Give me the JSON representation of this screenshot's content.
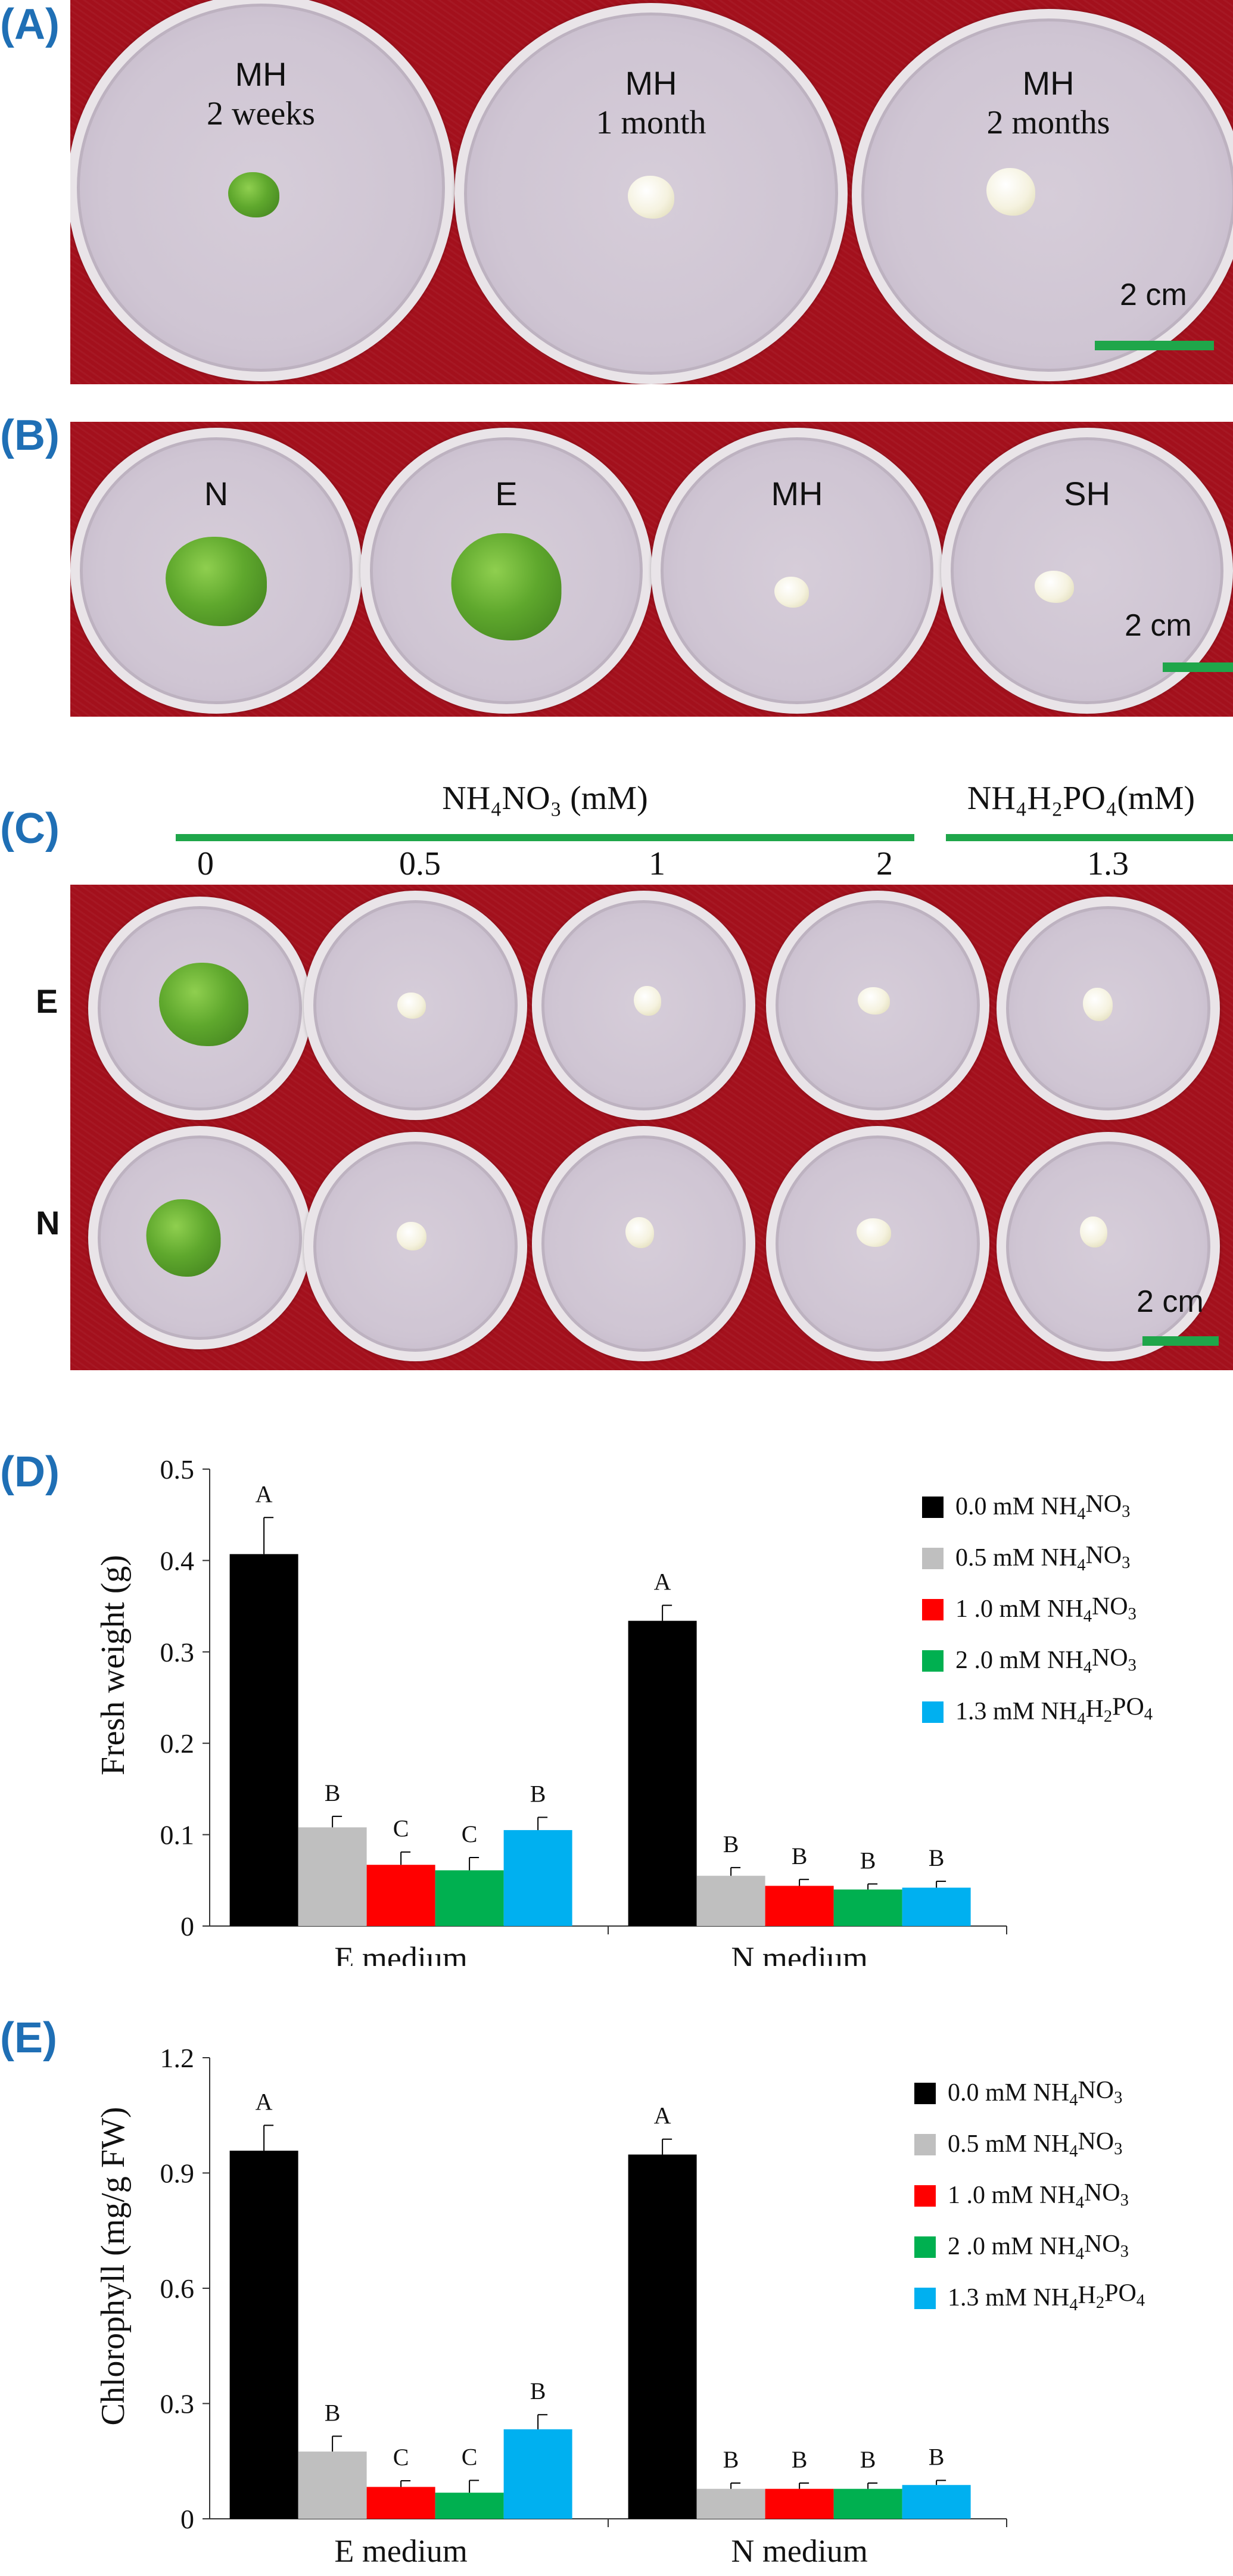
{
  "panels": {
    "a": {
      "label": "(A)",
      "dishes": [
        {
          "line1": "MH",
          "line2": "2 weeks",
          "callus": "green"
        },
        {
          "line1": "MH",
          "line2": "1 month",
          "callus": "white"
        },
        {
          "line1": "MH",
          "line2": "2 months",
          "callus": "white"
        }
      ],
      "scale": "2 cm"
    },
    "b": {
      "label": "(B)",
      "dishes": [
        {
          "name": "N",
          "callus": "green"
        },
        {
          "name": "E",
          "callus": "green"
        },
        {
          "name": "MH",
          "callus": "white"
        },
        {
          "name": "SH",
          "callus": "white"
        }
      ],
      "scale": "2 cm"
    },
    "c": {
      "label": "(C)",
      "header_left": "NH₄NO₃ (mM)",
      "header_right": "NH₄H₂PO₄(mM)",
      "concentrations": [
        "0",
        "0.5",
        "1",
        "2",
        "1.3"
      ],
      "rows": [
        "E",
        "N"
      ],
      "scale": "2 cm"
    },
    "d": {
      "label": "(D)"
    },
    "e": {
      "label": "(E)"
    }
  },
  "colors": {
    "background_cloth": "#a3101c",
    "scale_bar": "#1fa64a",
    "panel_label": "#1f6fb5"
  },
  "chart_data": [
    {
      "type": "bar",
      "ylabel": "Fresh weight (g)",
      "ylim": [
        0,
        0.5
      ],
      "yticks": [
        "0",
        "0.1",
        "0.2",
        "0.3",
        "0.4",
        "0.5"
      ],
      "categories": [
        "E medium",
        "N medium"
      ],
      "legend_position": "right",
      "series": [
        {
          "name": "0.0 mM NH₄NO₃",
          "color": "#000000",
          "values": [
            0.407,
            0.334
          ],
          "errors": [
            0.04,
            0.017
          ],
          "letters": [
            "A",
            "A"
          ]
        },
        {
          "name": "0.5 mM NH₄NO₃",
          "color": "#bfbfbf",
          "values": [
            0.108,
            0.055
          ],
          "errors": [
            0.012,
            0.009
          ],
          "letters": [
            "B",
            "B"
          ]
        },
        {
          "name": "1 .0 mM NH₄NO₃",
          "color": "#ff0000",
          "values": [
            0.067,
            0.044
          ],
          "errors": [
            0.014,
            0.007
          ],
          "letters": [
            "C",
            "B"
          ]
        },
        {
          "name": "2 .0 mM NH₄NO₃",
          "color": "#00b050",
          "values": [
            0.061,
            0.04
          ],
          "errors": [
            0.014,
            0.006
          ],
          "letters": [
            "C",
            "B"
          ]
        },
        {
          "name": "1.3 mM NH₄H₂PO₄",
          "color": "#00b0f0",
          "values": [
            0.105,
            0.042
          ],
          "errors": [
            0.014,
            0.007
          ],
          "letters": [
            "B",
            "B"
          ]
        }
      ]
    },
    {
      "type": "bar",
      "ylabel": "Chlorophyll (mg/g FW)",
      "ylim": [
        0,
        1.2
      ],
      "yticks": [
        "0",
        "0.3",
        "0.6",
        "0.9",
        "1.2"
      ],
      "categories": [
        "E medium",
        "N medium"
      ],
      "legend_position": "right",
      "series": [
        {
          "name": "0.0 mM NH₄NO₃",
          "color": "#000000",
          "values": [
            0.958,
            0.948
          ],
          "errors": [
            0.066,
            0.04
          ],
          "letters": [
            "A",
            "A"
          ]
        },
        {
          "name": "0.5 mM NH₄NO₃",
          "color": "#bfbfbf",
          "values": [
            0.175,
            0.078
          ],
          "errors": [
            0.04,
            0.015
          ],
          "letters": [
            "B",
            "B"
          ]
        },
        {
          "name": "1 .0 mM NH₄NO₃",
          "color": "#ff0000",
          "values": [
            0.083,
            0.078
          ],
          "errors": [
            0.016,
            0.015
          ],
          "letters": [
            "C",
            "B"
          ]
        },
        {
          "name": "2 .0 mM NH₄NO₃",
          "color": "#00b050",
          "values": [
            0.068,
            0.078
          ],
          "errors": [
            0.032,
            0.015
          ],
          "letters": [
            "C",
            "B"
          ]
        },
        {
          "name": "1.3 mM NH₄H₂PO₄",
          "color": "#00b0f0",
          "values": [
            0.233,
            0.088
          ],
          "errors": [
            0.038,
            0.012
          ],
          "letters": [
            "B",
            "B"
          ]
        }
      ]
    }
  ]
}
